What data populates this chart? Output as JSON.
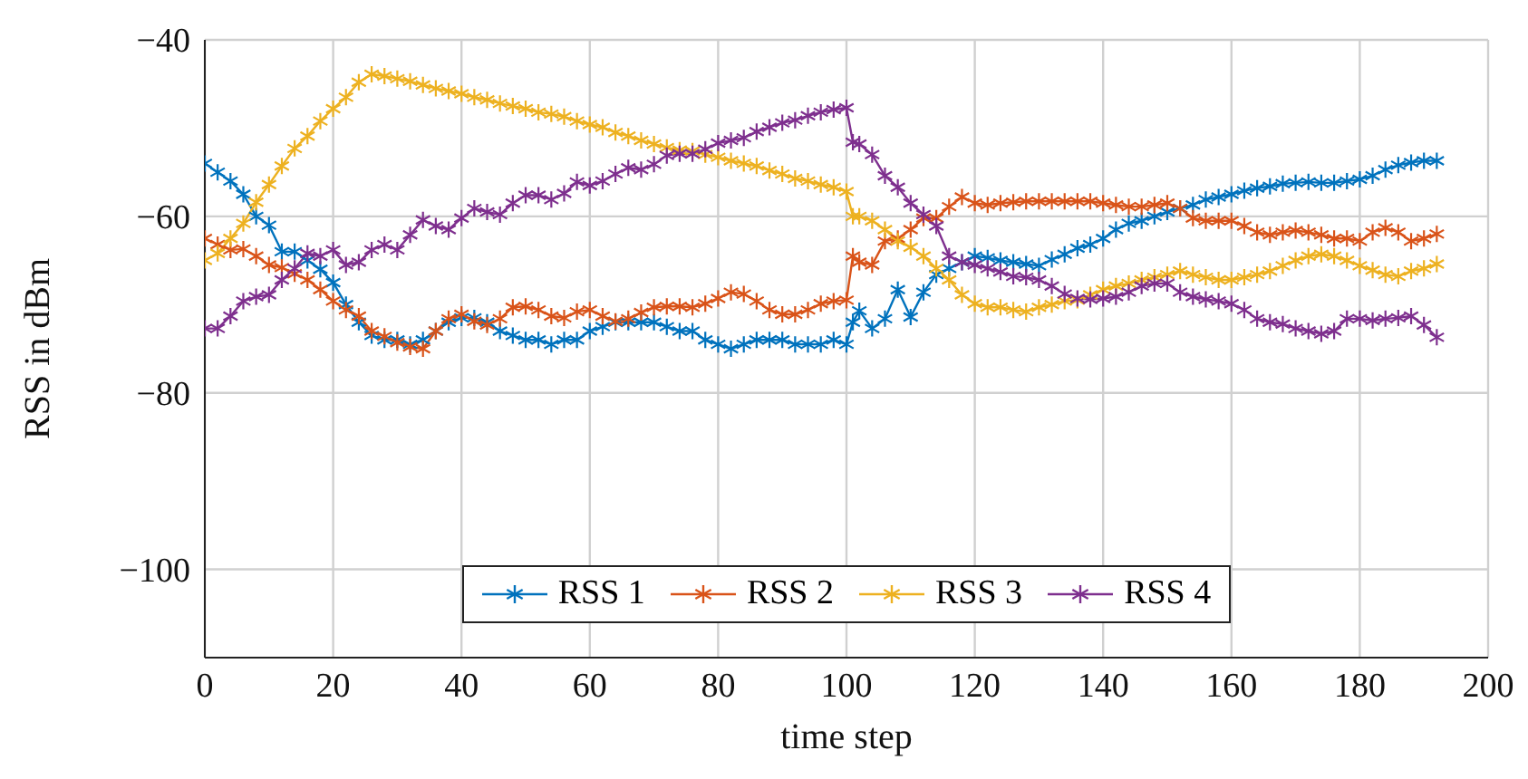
{
  "chart_data": {
    "type": "line",
    "xlabel": "time step",
    "ylabel": "RSS in dBm",
    "x": [
      0,
      2,
      4,
      6,
      8,
      10,
      12,
      14,
      16,
      18,
      20,
      22,
      24,
      26,
      28,
      30,
      32,
      34,
      36,
      38,
      40,
      42,
      44,
      46,
      48,
      50,
      52,
      54,
      56,
      58,
      60,
      62,
      64,
      66,
      68,
      70,
      72,
      74,
      76,
      78,
      80,
      82,
      84,
      86,
      88,
      90,
      92,
      94,
      96,
      98,
      100,
      101,
      102,
      104,
      106,
      108,
      110,
      112,
      114,
      116,
      118,
      120,
      122,
      124,
      126,
      128,
      130,
      132,
      134,
      136,
      138,
      140,
      142,
      144,
      146,
      148,
      150,
      152,
      154,
      156,
      158,
      160,
      162,
      164,
      166,
      168,
      170,
      172,
      174,
      176,
      178,
      180,
      182,
      184,
      186,
      188,
      190,
      192
    ],
    "series": [
      {
        "name": "RSS 1",
        "color": "#0072bd",
        "values": [
          -54,
          -55,
          -56,
          -57.5,
          -60,
          -61,
          -64,
          -64,
          -65,
          -66,
          -67.5,
          -70,
          -72,
          -73.5,
          -74,
          -74,
          -74.5,
          -74,
          -73,
          -72,
          -71.5,
          -71.5,
          -72,
          -73,
          -73.5,
          -74,
          -74,
          -74.5,
          -74,
          -74,
          -73,
          -72.5,
          -72,
          -72,
          -72,
          -72,
          -72.5,
          -73,
          -73,
          -74,
          -74.5,
          -75,
          -74.5,
          -74,
          -74,
          -74,
          -74.5,
          -74.5,
          -74.5,
          -74,
          -74.5,
          -72,
          -70.7,
          -72.7,
          -71.6,
          -68.3,
          -71.4,
          -68.6,
          -66.6,
          -65.9,
          -65.2,
          -64.5,
          -64.7,
          -65,
          -65.2,
          -65.4,
          -65.6,
          -64.9,
          -64.3,
          -63.6,
          -63.2,
          -62.5,
          -61.5,
          -60.8,
          -60.5,
          -60,
          -59.5,
          -59.1,
          -58.7,
          -58.1,
          -57.8,
          -57.5,
          -57.1,
          -56.8,
          -56.6,
          -56.3,
          -56.2,
          -56.1,
          -56.2,
          -56.2,
          -56,
          -55.8,
          -55.4,
          -54.7,
          -54.2,
          -53.9,
          -53.7,
          -53.7
        ]
      },
      {
        "name": "RSS 2",
        "color": "#d95319",
        "values": [
          -62.5,
          -63.2,
          -63.8,
          -63.7,
          -64.5,
          -65.5,
          -65.8,
          -66.5,
          -67.2,
          -68.3,
          -69.6,
          -70.6,
          -71.3,
          -73,
          -73.6,
          -74.3,
          -74.8,
          -75,
          -73,
          -71.6,
          -71.1,
          -71.9,
          -72.3,
          -71.6,
          -70.3,
          -70.2,
          -70.6,
          -71.3,
          -71.5,
          -70.8,
          -70.6,
          -71.3,
          -71.9,
          -71.6,
          -70.9,
          -70.3,
          -70.2,
          -70.2,
          -70.3,
          -69.9,
          -69.3,
          -68.6,
          -68.8,
          -69.6,
          -70.6,
          -71.1,
          -71.1,
          -70.6,
          -69.9,
          -69.6,
          -69.5,
          -64.5,
          -65.2,
          -65.5,
          -62.8,
          -62.5,
          -61.5,
          -60.2,
          -60.2,
          -58.9,
          -57.8,
          -58.5,
          -58.7,
          -58.5,
          -58.4,
          -58.3,
          -58.3,
          -58.3,
          -58.3,
          -58.3,
          -58.3,
          -58.5,
          -58.7,
          -58.9,
          -58.9,
          -58.7,
          -58.5,
          -59.1,
          -60.2,
          -60.5,
          -60.5,
          -60.5,
          -61.1,
          -61.8,
          -62.1,
          -61.8,
          -61.6,
          -61.8,
          -62.1,
          -62.5,
          -62.5,
          -62.8,
          -61.8,
          -61.3,
          -61.8,
          -62.8,
          -62.5,
          -62
        ]
      },
      {
        "name": "RSS 3",
        "color": "#edb120",
        "values": [
          -65,
          -64.2,
          -62.5,
          -60.8,
          -58.4,
          -56.4,
          -54.3,
          -52.3,
          -50.9,
          -49.2,
          -47.8,
          -46.5,
          -44.8,
          -43.9,
          -44.1,
          -44.4,
          -44.7,
          -45.1,
          -45.5,
          -45.8,
          -46.1,
          -46.5,
          -46.8,
          -47.2,
          -47.5,
          -47.8,
          -48.2,
          -48.4,
          -48.7,
          -49.2,
          -49.6,
          -49.9,
          -50.5,
          -50.9,
          -51.4,
          -51.8,
          -52.2,
          -52.5,
          -52.6,
          -53,
          -53.3,
          -53.7,
          -54,
          -54.3,
          -54.8,
          -55.2,
          -55.7,
          -56,
          -56.4,
          -56.7,
          -57.2,
          -60,
          -60,
          -60.5,
          -61.5,
          -62.8,
          -63.5,
          -64.5,
          -65.9,
          -67.2,
          -68.9,
          -69.9,
          -70.3,
          -70.3,
          -70.6,
          -70.8,
          -70.3,
          -70,
          -69.6,
          -69.5,
          -68.9,
          -68.3,
          -67.9,
          -67.6,
          -67.2,
          -66.9,
          -66.6,
          -66.2,
          -66.6,
          -66.9,
          -67.2,
          -67.2,
          -66.9,
          -66.6,
          -66.2,
          -65.6,
          -65,
          -64.5,
          -64.3,
          -64.5,
          -65,
          -65.6,
          -66.1,
          -66.6,
          -66.8,
          -66.2,
          -65.9,
          -65.4
        ]
      },
      {
        "name": "RSS 4",
        "color": "#7e2f8e",
        "values": [
          -72.7,
          -72.7,
          -71.3,
          -69.6,
          -69.1,
          -68.9,
          -67.2,
          -65.9,
          -64.2,
          -64.5,
          -63.8,
          -65.5,
          -65.2,
          -63.8,
          -63.2,
          -63.8,
          -62.1,
          -60.4,
          -61.1,
          -61.5,
          -60.2,
          -59.1,
          -59.5,
          -59.8,
          -58.5,
          -57.6,
          -57.6,
          -58.1,
          -57.4,
          -56.1,
          -56.5,
          -56,
          -55.2,
          -54.5,
          -54.7,
          -54.1,
          -53.1,
          -52.9,
          -52.9,
          -52.4,
          -51.7,
          -51.4,
          -51.1,
          -50.4,
          -49.9,
          -49.4,
          -49.1,
          -48.6,
          -48.2,
          -47.9,
          -47.7,
          -51.6,
          -51.8,
          -53,
          -55.4,
          -56.7,
          -58.5,
          -59.8,
          -61.1,
          -64.5,
          -65.2,
          -65.5,
          -65.9,
          -66.3,
          -66.8,
          -66.9,
          -67.2,
          -67.9,
          -68.8,
          -69.3,
          -69.4,
          -69.3,
          -69.1,
          -68.6,
          -67.9,
          -67.6,
          -67.6,
          -68.6,
          -69.1,
          -69.4,
          -69.6,
          -69.9,
          -70.6,
          -71.6,
          -72,
          -72.2,
          -72.7,
          -73,
          -73.3,
          -73,
          -71.6,
          -71.6,
          -71.8,
          -71.6,
          -71.5,
          -71.3,
          -72.3,
          -73.7
        ]
      }
    ],
    "xlim": [
      0,
      200
    ],
    "xticks": [
      0,
      20,
      40,
      60,
      80,
      100,
      120,
      140,
      160,
      180,
      200
    ],
    "ylim": [
      -110,
      -40
    ],
    "yticks": [
      -100,
      -80,
      -60,
      -40
    ],
    "grid": true,
    "legend": "bottom",
    "marker": "cross",
    "line_style": "solid"
  }
}
